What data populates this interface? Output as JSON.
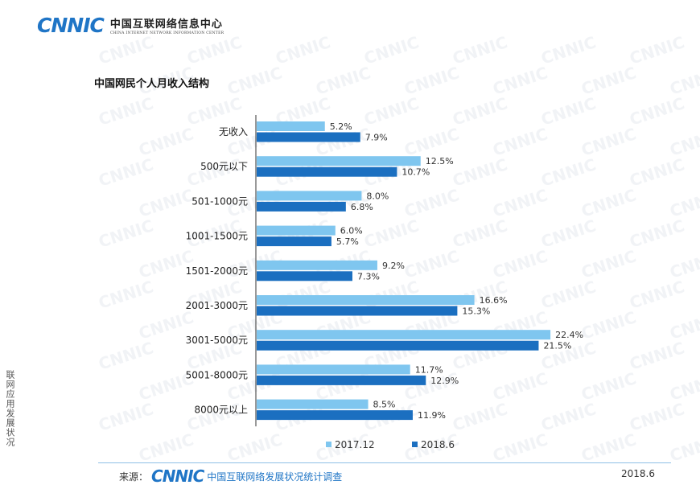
{
  "header": {
    "logo_mark": "CNNIC",
    "org_name_cn": "中国互联网络信息中心",
    "org_name_en": "CHINA INTERNET NETWORK INFORMATION CENTER"
  },
  "watermark_text": "CNNIC",
  "colors": {
    "series_2017": "#7fc6ef",
    "series_2018": "#1b6fc0",
    "brand": "#1f75c6"
  },
  "chart_data": {
    "type": "bar",
    "orientation": "horizontal",
    "title": "中国网民个人月收入结构",
    "categories": [
      "无收入",
      "500元以下",
      "501-1000元",
      "1001-1500元",
      "1501-2000元",
      "2001-3000元",
      "3001-5000元",
      "5001-8000元",
      "8000元以上"
    ],
    "series": [
      {
        "name": "2017.12",
        "values": [
          5.2,
          12.5,
          8.0,
          6.0,
          9.2,
          16.6,
          22.4,
          11.7,
          8.5
        ],
        "labels": [
          "5.2%",
          "12.5%",
          "8.0%",
          "6.0%",
          "9.2%",
          "16.6%",
          "22.4%",
          "11.7%",
          "8.5%"
        ]
      },
      {
        "name": "2018.6",
        "values": [
          7.9,
          10.7,
          6.8,
          5.7,
          7.3,
          15.3,
          21.5,
          12.9,
          11.9
        ],
        "labels": [
          "7.9%",
          "10.7%",
          "6.8%",
          "5.7%",
          "7.3%",
          "15.3%",
          "21.5%",
          "12.9%",
          "11.9%"
        ]
      }
    ],
    "xlim": [
      0,
      25
    ],
    "legend_position": "bottom",
    "grid": false
  },
  "side_text": "联网应用发展状况",
  "footer": {
    "source_label": "来源：",
    "source_logo": "CNNIC",
    "source_name": "中国互联网络发展状况统计调查",
    "date": "2018.6"
  }
}
